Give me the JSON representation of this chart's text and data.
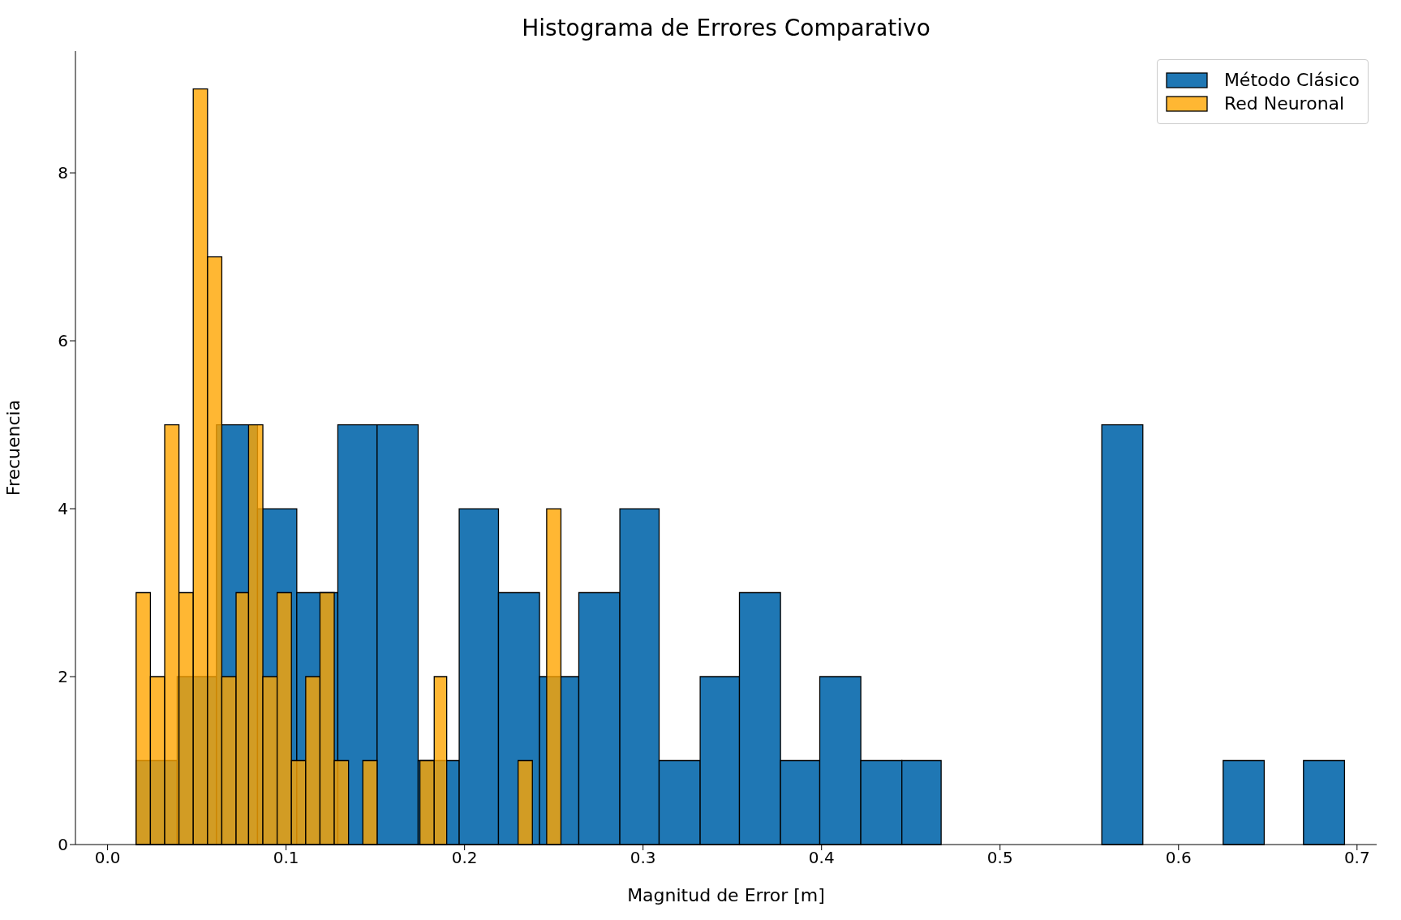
{
  "chart_data": {
    "type": "histogram",
    "title": "Histograma de Errores Comparativo",
    "xlabel": "Magnitud de Error [m]",
    "ylabel": "Frecuencia",
    "series": [
      {
        "name": "Método Clásico",
        "color": "#1f77b4",
        "values": [
          1,
          2,
          5,
          4,
          3,
          5,
          5,
          1,
          4,
          3,
          2,
          3,
          4,
          1,
          2,
          3,
          1,
          2,
          1,
          1,
          0,
          5,
          0,
          1,
          0,
          1
        ]
      },
      {
        "name": "Red Neuronal",
        "color": "#ffa500",
        "bins": [
          0.016,
          0.024,
          0.032,
          0.04,
          0.048,
          0.056,
          0.064,
          0.072,
          0.079,
          0.087,
          0.095,
          0.103,
          0.111,
          0.119,
          0.127,
          0.135,
          0.143,
          0.151,
          0.175,
          0.183,
          0.19,
          0.23,
          0.238,
          0.246,
          0.254
        ],
        "values": [
          3,
          2,
          5,
          3,
          9,
          7,
          2,
          3,
          5,
          2,
          3,
          1,
          2,
          3,
          1,
          0,
          1,
          0,
          1,
          2,
          0,
          1,
          0,
          4
        ]
      }
    ],
    "bins": [
      0.016,
      0.039,
      0.061,
      0.084,
      0.106,
      0.129,
      0.151,
      0.174,
      0.197,
      0.219,
      0.242,
      0.264,
      0.287,
      0.309,
      0.332,
      0.354,
      0.377,
      0.399,
      0.422,
      0.445,
      0.467,
      0.557,
      0.58,
      0.625,
      0.648,
      0.67,
      0.693
    ],
    "xlim": [
      -0.018,
      0.711
    ],
    "ylim": [
      0,
      9.45
    ],
    "xticks": [
      {
        "value": 0,
        "label": "0.0"
      },
      {
        "value": 0.1,
        "label": "0.1"
      },
      {
        "value": 0.2,
        "label": "0.2"
      },
      {
        "value": 0.3,
        "label": "0.3"
      },
      {
        "value": 0.4,
        "label": "0.4"
      },
      {
        "value": 0.5,
        "label": "0.5"
      },
      {
        "value": 0.6,
        "label": "0.6"
      },
      {
        "value": 0.7,
        "label": "0.7"
      }
    ],
    "yticks": [
      0,
      2,
      4,
      6,
      8
    ],
    "legend": "top right"
  }
}
